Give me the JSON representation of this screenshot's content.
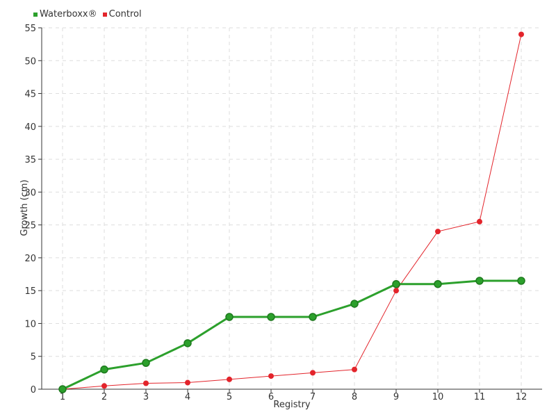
{
  "chart_data": {
    "type": "line",
    "title": "",
    "xlabel": "Registry",
    "ylabel": "Growth (cm)",
    "categories": [
      "1",
      "2",
      "3",
      "4",
      "5",
      "6",
      "7",
      "8",
      "9",
      "10",
      "11",
      "12"
    ],
    "ylim": [
      0,
      55
    ],
    "yticks": [
      "0",
      "5",
      "10",
      "15",
      "20",
      "25",
      "30",
      "35",
      "40",
      "45",
      "50",
      "55"
    ],
    "grid": true,
    "legend_position": "top-left",
    "series": [
      {
        "name": "Waterboxx®",
        "color": "#2ca02c",
        "values": [
          0,
          3,
          4,
          7,
          11,
          11,
          11,
          13,
          16,
          16,
          16.5,
          16.5
        ]
      },
      {
        "name": "Control",
        "color": "#e3242b",
        "values": [
          0,
          0.5,
          0.9,
          1,
          1.5,
          2,
          2.5,
          3,
          15,
          24,
          25.5,
          54
        ]
      }
    ]
  }
}
